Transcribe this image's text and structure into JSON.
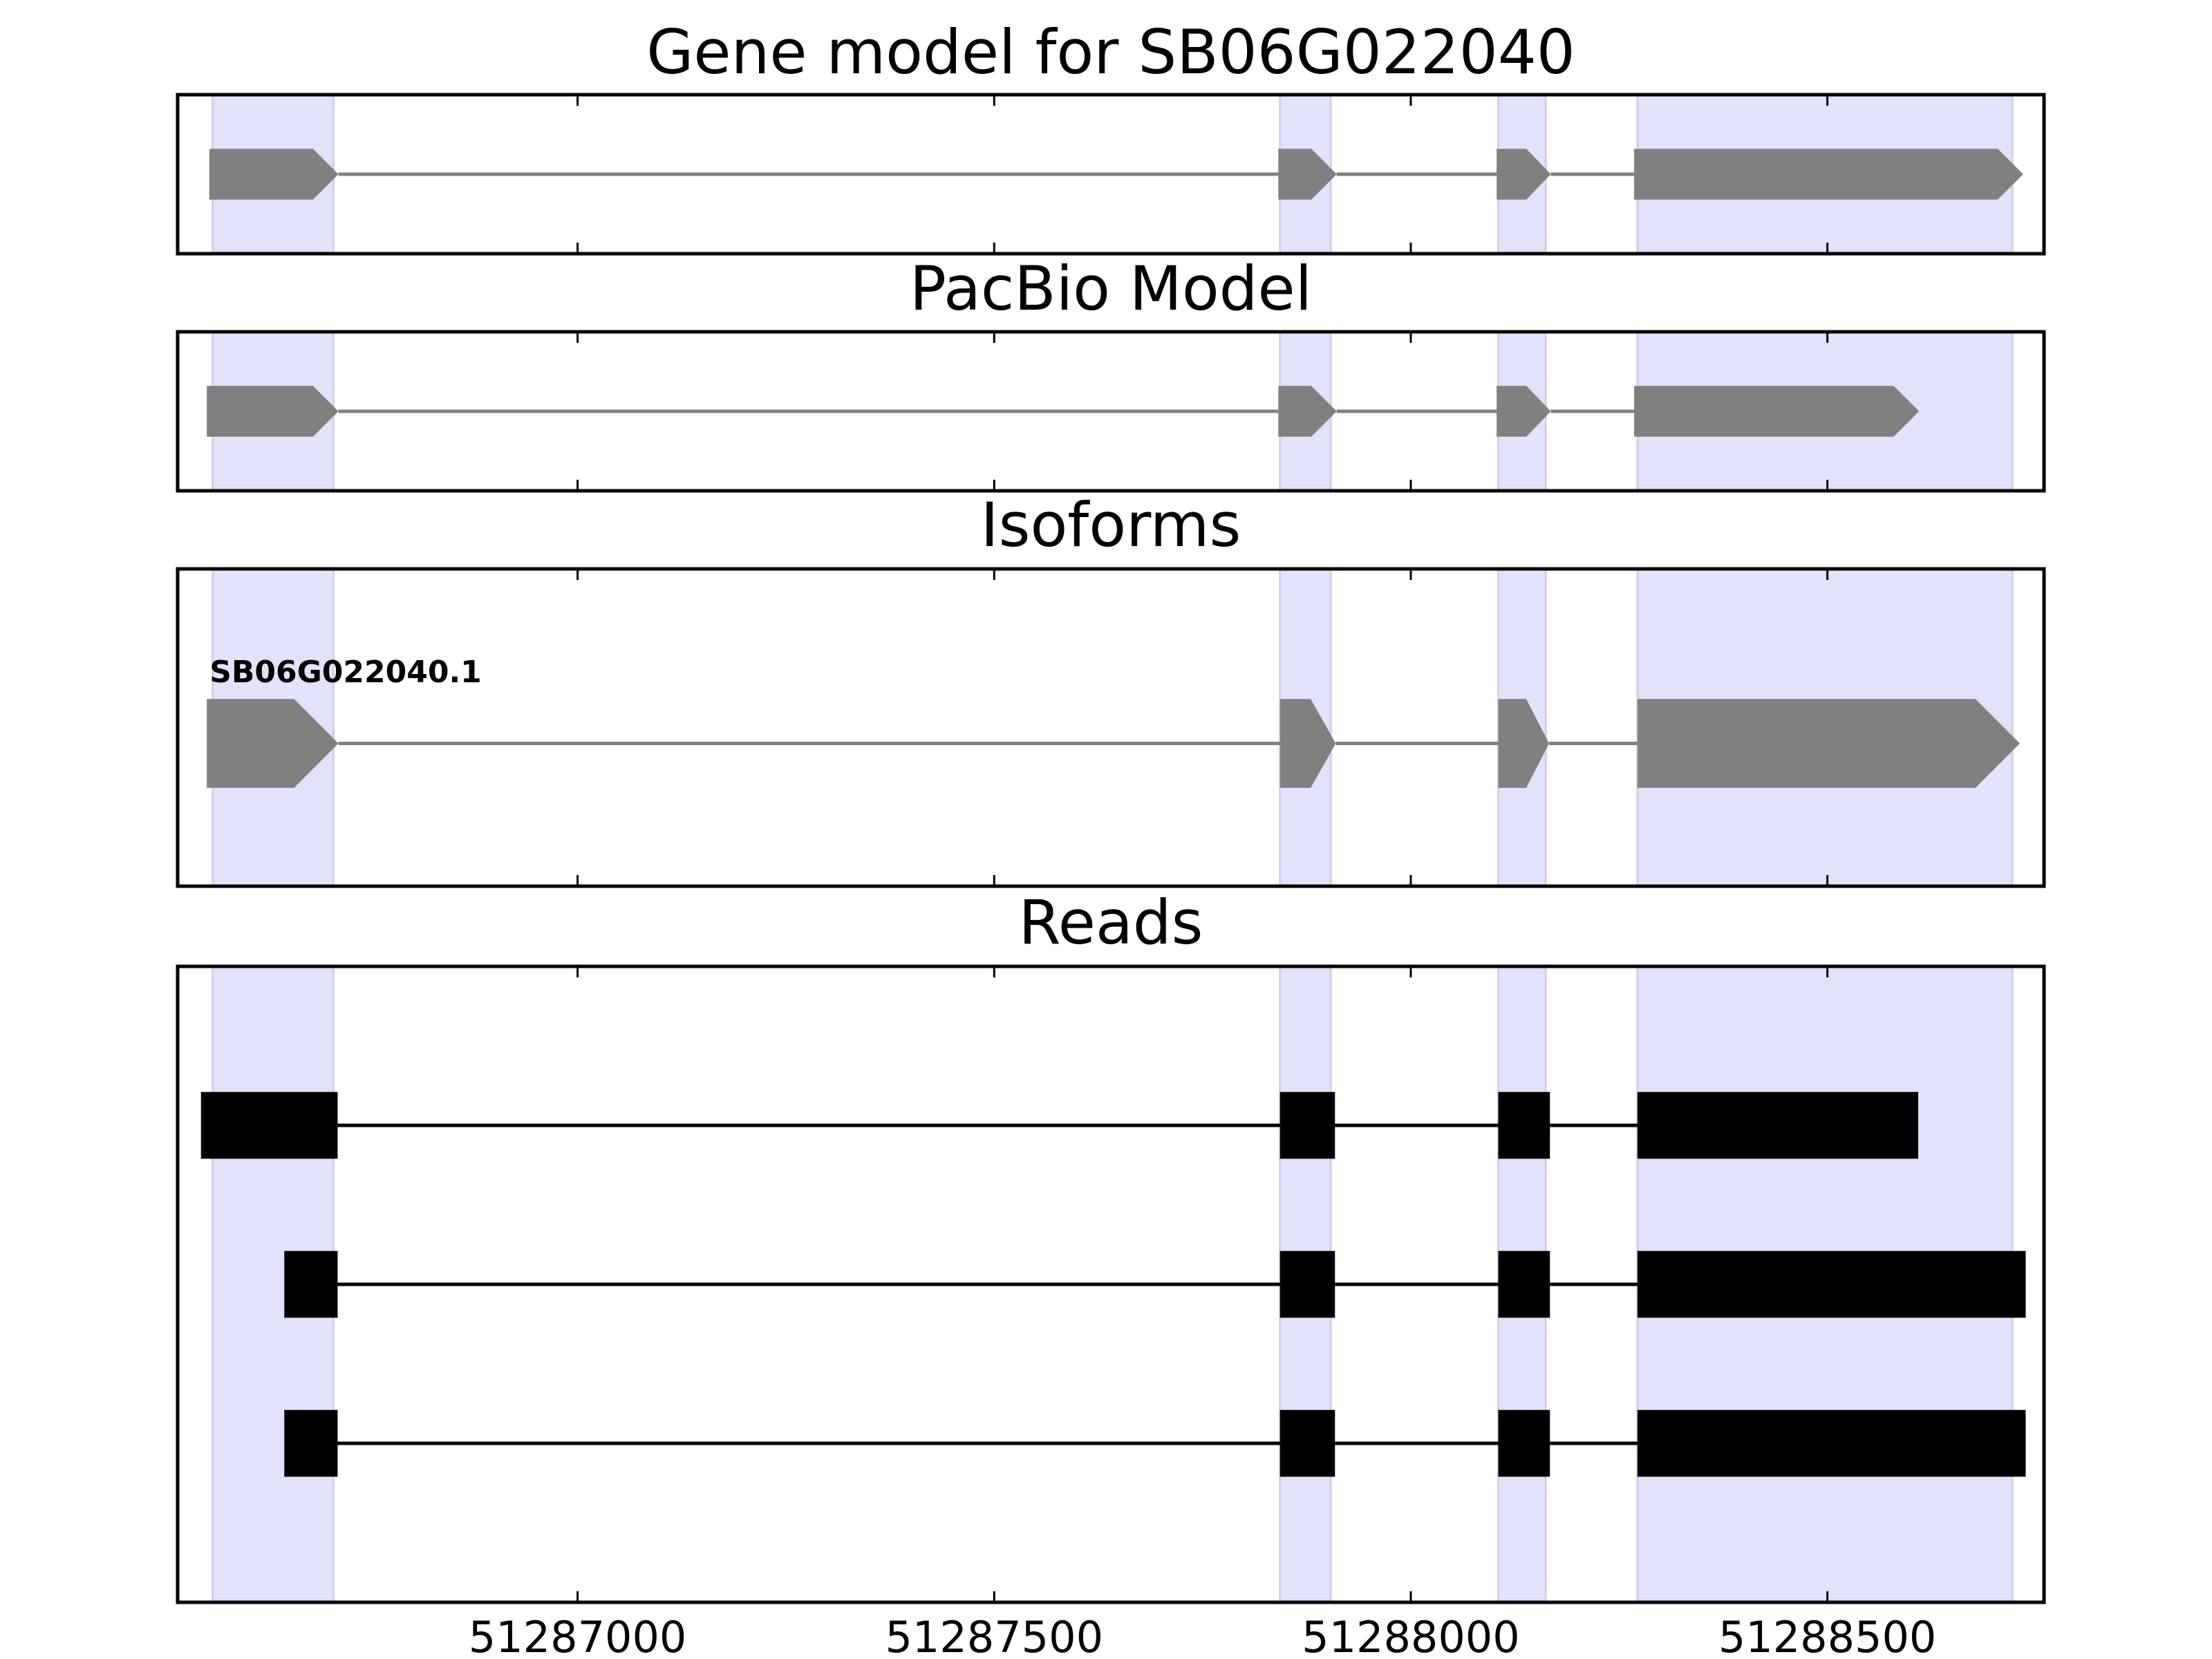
{
  "chart_data": {
    "type": "gene-structure",
    "x_axis": {
      "xlim": [
        51286520,
        51288760
      ],
      "ticks": [
        51287000,
        51287500,
        51288000,
        51288500
      ],
      "tick_labels": [
        "51287000",
        "51287500",
        "51288000",
        "51288500"
      ]
    },
    "colors": {
      "exon_region": "#e2e2fb",
      "exon_region_edge": "#cfcfee",
      "model": "#808080",
      "read": "#000000",
      "frame": "#000000"
    },
    "exon_regions": [
      [
        51286562,
        51286707
      ],
      [
        51287843,
        51287904
      ],
      [
        51288105,
        51288162
      ],
      [
        51288272,
        51288722
      ]
    ],
    "panels": [
      {
        "id": "gene-model",
        "title": "Gene model for SB06G022040",
        "style": "arrow",
        "tracks": [
          {
            "label": "",
            "y": 0.5,
            "height": 0.32,
            "exons": [
              [
                51286558,
                51286713
              ],
              [
                51287841,
                51287911
              ],
              [
                51288103,
                51288168
              ],
              [
                51288268,
                51288735
              ]
            ]
          }
        ]
      },
      {
        "id": "pacbio-model",
        "title": "PacBio Model",
        "style": "arrow",
        "tracks": [
          {
            "label": "",
            "y": 0.5,
            "height": 0.32,
            "exons": [
              [
                51286555,
                51286713
              ],
              [
                51287841,
                51287911
              ],
              [
                51288103,
                51288168
              ],
              [
                51288268,
                51288610
              ]
            ]
          }
        ]
      },
      {
        "id": "isoforms",
        "title": "Isoforms",
        "style": "arrow",
        "tracks": [
          {
            "label": "SB06G022040.1",
            "y": 0.45,
            "height": 0.28,
            "exons": [
              [
                51286555,
                51286713
              ],
              [
                51287843,
                51287910
              ],
              [
                51288105,
                51288166
              ],
              [
                51288272,
                51288731
              ]
            ]
          }
        ]
      },
      {
        "id": "reads",
        "title": "Reads",
        "style": "block",
        "tracks": [
          {
            "label": "",
            "y": 0.75,
            "height": 0.105,
            "exons": [
              [
                51286548,
                51286712
              ],
              [
                51287843,
                51287909
              ],
              [
                51288105,
                51288167
              ],
              [
                51288272,
                51288609
              ]
            ]
          },
          {
            "label": "",
            "y": 0.5,
            "height": 0.105,
            "exons": [
              [
                51286648,
                51286712
              ],
              [
                51287843,
                51287909
              ],
              [
                51288105,
                51288167
              ],
              [
                51288272,
                51288738
              ]
            ]
          },
          {
            "label": "",
            "y": 0.25,
            "height": 0.105,
            "exons": [
              [
                51286648,
                51286712
              ],
              [
                51287843,
                51287909
              ],
              [
                51288105,
                51288167
              ],
              [
                51288272,
                51288738
              ]
            ]
          }
        ]
      }
    ]
  }
}
